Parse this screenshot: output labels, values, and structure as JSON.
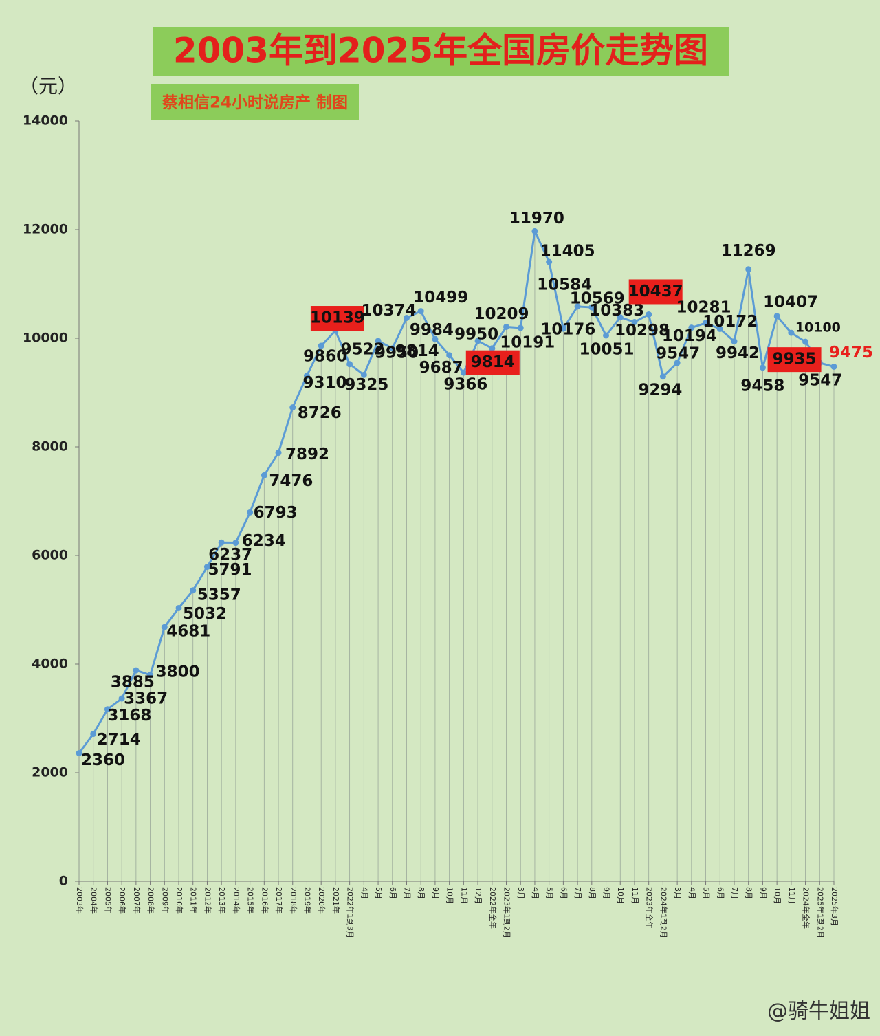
{
  "chart_data": {
    "type": "line",
    "title": "2003年到2025年全国房价走势图",
    "subtitle": "蔡相信24小时说房产  制图",
    "y_unit_label": "（元）",
    "watermark": "@骑牛姐姐",
    "categories": [
      "2003年",
      "2004年",
      "2005年",
      "2006年",
      "2007年",
      "2008年",
      "2009年",
      "2010年",
      "2011年",
      "2012年",
      "2013年",
      "2014年",
      "2015年",
      "2016年",
      "2017年",
      "2018年",
      "2019年",
      "2020年",
      "2021年",
      "2022年1到3月",
      "4月",
      "5月",
      "6月",
      "7月",
      "8月",
      "9月",
      "10月",
      "11月",
      "12月",
      "2022年全年",
      "2023年1到2月",
      "3月",
      "4月",
      "5月",
      "6月",
      "7月",
      "8月",
      "9月",
      "10月",
      "11月",
      "2023年全年",
      "2024年1到2月",
      "3月",
      "4月",
      "5月",
      "6月",
      "7月",
      "8月",
      "9月",
      "10月",
      "11月",
      "2024年全年",
      "2025年1到2月",
      "2025年3月"
    ],
    "values": [
      2360,
      2714,
      3168,
      3367,
      3885,
      3800,
      4681,
      5032,
      5357,
      5791,
      6237,
      6234,
      6793,
      7476,
      7892,
      8726,
      9310,
      9860,
      10139,
      9522,
      9325,
      9950,
      9814,
      10374,
      10499,
      9984,
      9687,
      9366,
      9950,
      9814,
      10209,
      10191,
      11970,
      11405,
      10176,
      10584,
      10569,
      10051,
      10383,
      10298,
      10437,
      9294,
      9547,
      10194,
      10281,
      10172,
      9942,
      11269,
      9458,
      10407,
      10100,
      9935,
      9547,
      9475
    ],
    "color": "#5b9bd5",
    "boxed_labels": [
      18,
      29,
      40,
      51
    ],
    "red_labels": [
      53
    ],
    "highlight_color": "#e8201c",
    "ylim": [
      0,
      14000
    ],
    "yticks": [
      0,
      2000,
      4000,
      6000,
      8000,
      10000,
      12000,
      14000
    ],
    "drop_lines": true
  }
}
